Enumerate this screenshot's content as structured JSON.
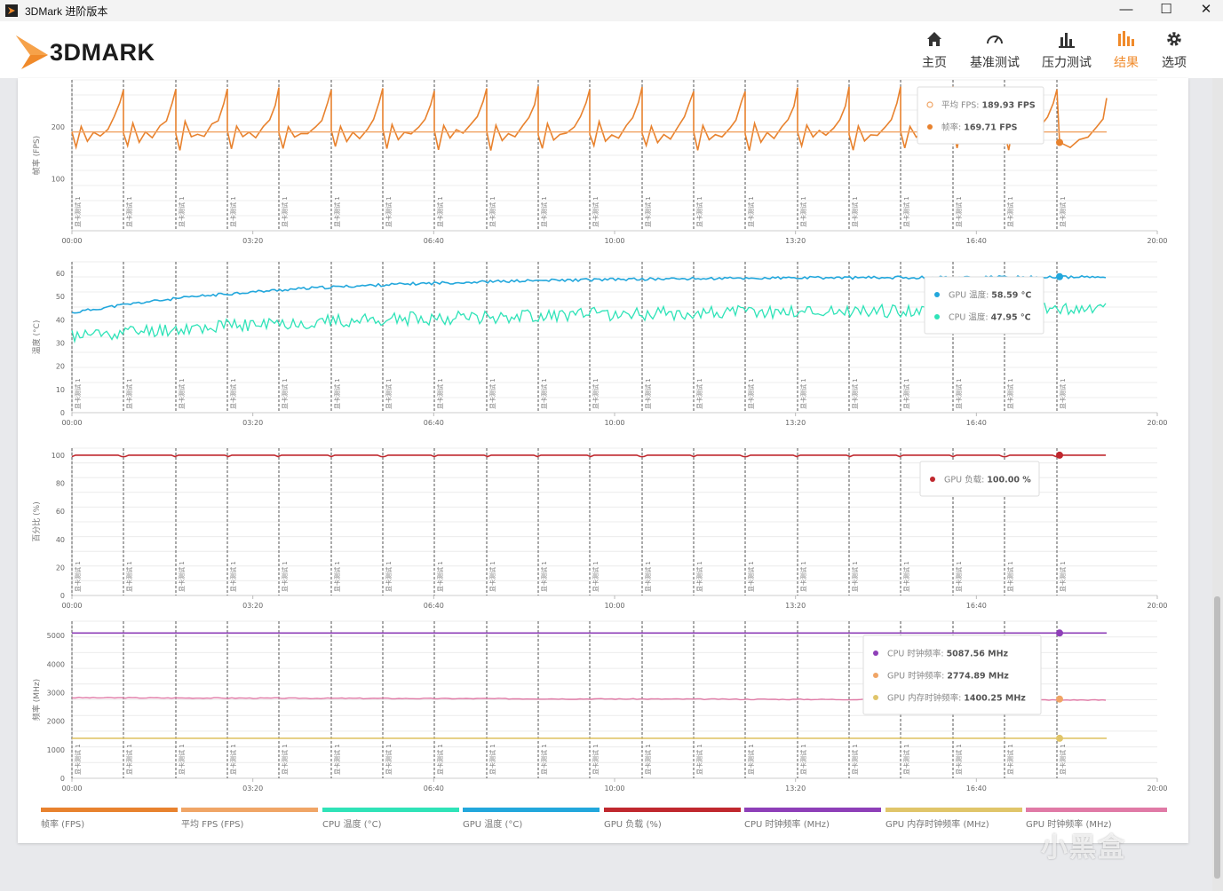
{
  "window": {
    "title": "3DMark 进阶版本",
    "minimize": "—",
    "maximize": "☐",
    "close": "✕"
  },
  "header": {
    "logo_text": "3DMARK",
    "nav": [
      {
        "label": "主页",
        "icon": "home-icon"
      },
      {
        "label": "基准测试",
        "icon": "gauge-icon"
      },
      {
        "label": "压力测试",
        "icon": "bar-chart-icon"
      },
      {
        "label": "结果",
        "icon": "results-icon",
        "active": true
      },
      {
        "label": "选项",
        "icon": "gear-icon"
      }
    ]
  },
  "colors": {
    "fps": "#e8822e",
    "avg_fps": "#f0a566",
    "cpu_temp": "#2fe3b8",
    "gpu_temp": "#22a7dc",
    "gpu_load": "#c0282e",
    "cpu_clock": "#8e3fb8",
    "gpu_mem_clock": "#e0c56a",
    "gpu_clock": "#e07aa6",
    "accent": "#f08a2a"
  },
  "chart_data": [
    {
      "type": "line",
      "ylabel": "帧率 (FPS)",
      "yticks": [
        "100",
        "200"
      ],
      "ylim": [
        0,
        290
      ],
      "x_ticks": [
        "00:00",
        "03:20",
        "06:40",
        "10:00",
        "13:20",
        "16:40",
        "20:00"
      ],
      "markers_label": "显卡测试 1",
      "series": [
        {
          "name": "平均 FPS",
          "value_text": "189.93 FPS",
          "constant": 189.93
        },
        {
          "name": "帧率",
          "value_text": "169.71 FPS",
          "approx_range": [
            155,
            280
          ]
        }
      ]
    },
    {
      "type": "line",
      "ylabel": "温度 (°C)",
      "yticks": [
        "0",
        "10",
        "20",
        "30",
        "40",
        "50",
        "60"
      ],
      "ylim": [
        0,
        65
      ],
      "x_ticks": [
        "00:00",
        "03:20",
        "06:40",
        "10:00",
        "13:20",
        "16:40",
        "20:00"
      ],
      "markers_label": "显卡测试 1",
      "series": [
        {
          "name": "GPU 温度",
          "value_text": "58.59 °C",
          "start": 43,
          "end": 58.59
        },
        {
          "name": "CPU 温度",
          "value_text": "47.95 °C",
          "start": 33,
          "end": 45
        }
      ]
    },
    {
      "type": "line",
      "ylabel": "百分比 (%)",
      "yticks": [
        "0",
        "20",
        "40",
        "60",
        "80",
        "100"
      ],
      "ylim": [
        0,
        105
      ],
      "x_ticks": [
        "00:00",
        "03:20",
        "06:40",
        "10:00",
        "13:20",
        "16:40",
        "20:00"
      ],
      "markers_label": "显卡测试 1",
      "series": [
        {
          "name": "GPU 负载",
          "value_text": "100.00 %",
          "constant": 100
        }
      ]
    },
    {
      "type": "line",
      "ylabel": "频率 (MHz)",
      "yticks": [
        "0",
        "1000",
        "2000",
        "3000",
        "4000",
        "5000"
      ],
      "ylim": [
        0,
        5500
      ],
      "x_ticks": [
        "00:00",
        "03:20",
        "06:40",
        "10:00",
        "13:20",
        "16:40",
        "20:00"
      ],
      "markers_label": "显卡测试 1",
      "series": [
        {
          "name": "CPU 时钟频率",
          "value_text": "5087.56 MHz",
          "constant": 5087.56
        },
        {
          "name": "GPU 时钟频率",
          "value_text": "2774.89 MHz",
          "constant": 2774.89
        },
        {
          "name": "GPU 内存时钟频率",
          "value_text": "1400.25 MHz",
          "constant": 1400.25
        }
      ]
    }
  ],
  "legend": [
    {
      "label": "帧率 (FPS)",
      "color": "#e8822e"
    },
    {
      "label": "平均 FPS (FPS)",
      "color": "#f0a566"
    },
    {
      "label": "CPU 温度 (°C)",
      "color": "#2fe3b8"
    },
    {
      "label": "GPU 温度 (°C)",
      "color": "#22a7dc"
    },
    {
      "label": "GPU 负载 (%)",
      "color": "#c0282e"
    },
    {
      "label": "CPU 时钟频率 (MHz)",
      "color": "#8e3fb8"
    },
    {
      "label": "GPU 内存时钟频率 (MHz)",
      "color": "#e0c56a"
    },
    {
      "label": "GPU 时钟频率 (MHz)",
      "color": "#e07aa6"
    }
  ],
  "watermark": "小黑盒"
}
